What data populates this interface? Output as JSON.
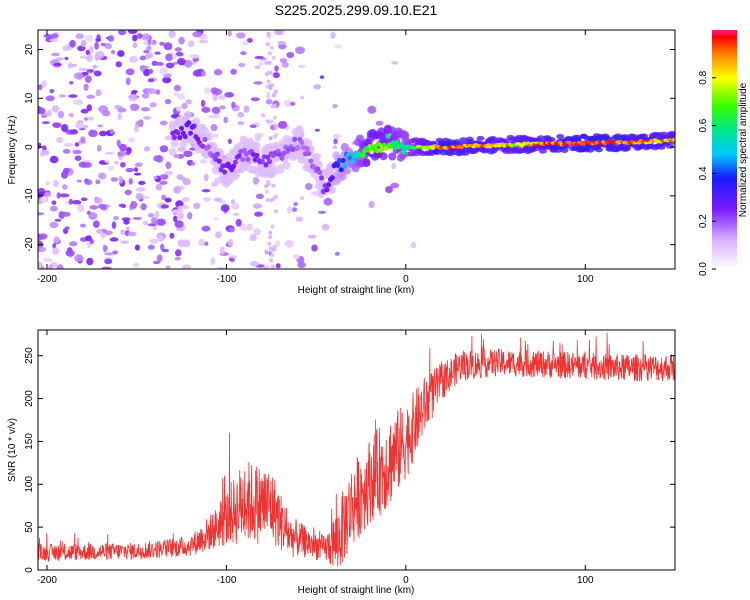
{
  "page_title": "S225.2025.299.09.10.E21",
  "chart_data": [
    {
      "type": "heatmap",
      "xlabel": "Height of straight line (km)",
      "ylabel": "Frequency (Hz)",
      "xlim": [
        -205,
        150
      ],
      "ylim": [
        -25,
        24
      ],
      "xticks": [
        -200,
        -100,
        0,
        100
      ],
      "yticks": [
        -20,
        -10,
        0,
        10,
        20
      ],
      "colorbar": {
        "label": "Normalized spectral amplitude",
        "range": [
          0.0,
          1.0
        ],
        "ticks": [
          0.0,
          0.2,
          0.4,
          0.6,
          0.8
        ],
        "tick_labels": [
          "0.0",
          "0.2",
          "0.4",
          "0.6",
          "0.8"
        ]
      },
      "ridge": {
        "x": [
          -130,
          -120,
          -110,
          -100,
          -90,
          -80,
          -70,
          -60,
          -50,
          -45,
          -40,
          -35,
          -30,
          -20,
          -10,
          0,
          20,
          60,
          100,
          130,
          150
        ],
        "freq": [
          2,
          4,
          0,
          -5,
          -1,
          -3,
          -2,
          1,
          -4,
          -9,
          -5,
          -3,
          -2,
          0,
          1,
          0,
          0,
          0.5,
          0.8,
          1,
          1.5
        ],
        "amplitude": [
          0.25,
          0.3,
          0.2,
          0.28,
          0.22,
          0.25,
          0.22,
          0.2,
          0.2,
          0.25,
          0.35,
          0.45,
          0.5,
          0.75,
          0.7,
          0.6,
          0.95,
          0.8,
          0.98,
          0.9,
          0.85
        ]
      }
    },
    {
      "type": "line",
      "xlabel": "Height of straight line (km)",
      "ylabel": "SNR (10 * v/v)",
      "xlim": [
        -205,
        150
      ],
      "ylim": [
        0,
        280
      ],
      "xticks": [
        -200,
        -100,
        0,
        100
      ],
      "yticks": [
        0,
        50,
        100,
        150,
        200,
        250
      ],
      "color": "#ee3333",
      "envelope": {
        "x": [
          -205,
          -150,
          -120,
          -105,
          -90,
          -75,
          -65,
          -55,
          -45,
          -38,
          -30,
          -20,
          -10,
          0,
          10,
          20,
          30,
          50,
          80,
          100,
          120,
          150
        ],
        "mean": [
          20,
          22,
          28,
          50,
          80,
          75,
          40,
          32,
          25,
          35,
          75,
          105,
          125,
          150,
          190,
          220,
          238,
          242,
          240,
          238,
          236,
          236
        ],
        "spread": [
          10,
          10,
          12,
          25,
          50,
          45,
          25,
          18,
          15,
          40,
          50,
          50,
          55,
          45,
          35,
          22,
          18,
          16,
          16,
          16,
          16,
          16
        ]
      }
    }
  ]
}
